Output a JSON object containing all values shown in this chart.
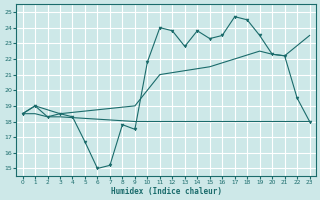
{
  "xlabel": "Humidex (Indice chaleur)",
  "bg_color": "#cde8e8",
  "grid_color": "#ffffff",
  "line_color": "#1a6b6b",
  "xlim": [
    -0.5,
    23.5
  ],
  "ylim": [
    14.5,
    25.5
  ],
  "yticks": [
    15,
    16,
    17,
    18,
    19,
    20,
    21,
    22,
    23,
    24,
    25
  ],
  "xticks": [
    0,
    1,
    2,
    3,
    4,
    5,
    6,
    7,
    8,
    9,
    10,
    11,
    12,
    13,
    14,
    15,
    16,
    17,
    18,
    19,
    20,
    21,
    22,
    23
  ],
  "series1_x": [
    0,
    1,
    2,
    3,
    4,
    5,
    6,
    7,
    8,
    9,
    10,
    11,
    12,
    13,
    14,
    15,
    16,
    17,
    18,
    19,
    20,
    21,
    22,
    23
  ],
  "series1_y": [
    18.5,
    19.0,
    18.3,
    18.5,
    18.3,
    16.7,
    15.0,
    15.2,
    17.8,
    17.5,
    21.8,
    24.0,
    23.8,
    22.8,
    23.8,
    23.3,
    23.5,
    24.7,
    24.5,
    23.5,
    22.3,
    22.2,
    19.5,
    18.0
  ],
  "series2_x": [
    0,
    1,
    2,
    3,
    9,
    10,
    15,
    16,
    17,
    18,
    19,
    20,
    21,
    22,
    23
  ],
  "series2_y": [
    18.5,
    18.5,
    18.3,
    18.3,
    18.0,
    18.0,
    18.0,
    18.0,
    18.0,
    18.0,
    18.0,
    18.0,
    18.0,
    18.0,
    18.0
  ],
  "series3_x": [
    0,
    1,
    3,
    9,
    10,
    11,
    15,
    19,
    20,
    21,
    23
  ],
  "series3_y": [
    18.5,
    19.0,
    18.5,
    19.0,
    20.0,
    21.0,
    21.5,
    22.5,
    22.3,
    22.2,
    23.5
  ]
}
